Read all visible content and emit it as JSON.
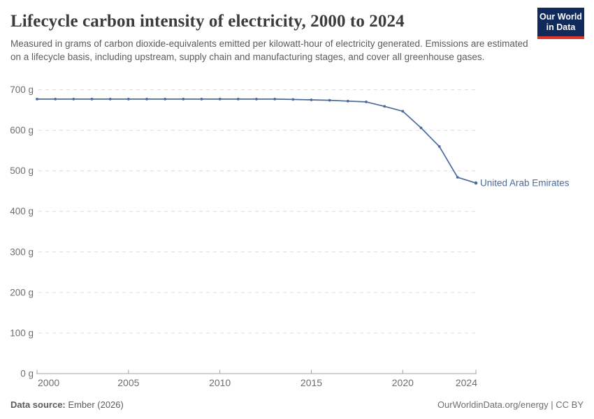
{
  "header": {
    "title": "Lifecycle carbon intensity of electricity, 2000 to 2024",
    "subtitle": "Measured in grams of carbon dioxide-equivalents emitted per kilowatt-hour of electricity generated. Emissions are estimated on a lifecycle basis, including upstream, supply chain and manufacturing stages, and cover all greenhouse gases.",
    "logo": {
      "line1": "Our World",
      "line2": "in Data",
      "bg_color": "#102a5c",
      "accent_color": "#e0372e"
    }
  },
  "chart_data": {
    "type": "line",
    "title": "Lifecycle carbon intensity of electricity, 2000 to 2024",
    "ylabel": "",
    "xlabel": "",
    "ylim": [
      0,
      700
    ],
    "xlim": [
      2000,
      2024
    ],
    "grid": "horizontal-dashed",
    "legend_position": "end-of-line-label",
    "y_ticks": [
      0,
      100,
      200,
      300,
      400,
      500,
      600,
      700
    ],
    "y_tick_suffix": " g",
    "x_ticks": [
      2000,
      2005,
      2010,
      2015,
      2020,
      2024
    ],
    "x": [
      2000,
      2001,
      2002,
      2003,
      2004,
      2005,
      2006,
      2007,
      2008,
      2009,
      2010,
      2011,
      2012,
      2013,
      2014,
      2015,
      2016,
      2017,
      2018,
      2019,
      2020,
      2021,
      2022,
      2023,
      2024
    ],
    "series": [
      {
        "name": "United Arab Emirates",
        "color": "#4c6a9c",
        "values": [
          677,
          677,
          677,
          677,
          677,
          677,
          677,
          677,
          677,
          677,
          677,
          677,
          677,
          677,
          676,
          675,
          674,
          672,
          670,
          659,
          647,
          606,
          560,
          484,
          470
        ]
      }
    ],
    "colors": {
      "gridline": "#dcdcdc",
      "axis": "#a3a3a3",
      "tick_label": "#6e6e6e"
    }
  },
  "footer": {
    "source_label": "Data source:",
    "source_value": " Ember (2026)",
    "right": "OurWorldinData.org/energy | CC BY"
  }
}
